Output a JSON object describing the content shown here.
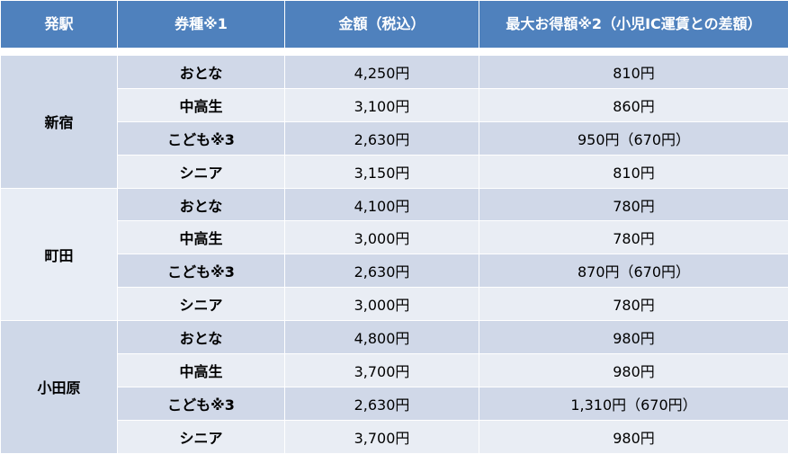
{
  "header": {
    "station": "発駅",
    "ticket_type": "券種※1",
    "price": "金額（税込）",
    "saving": "最大お得額※2（小児IC運賃との差額）"
  },
  "stations": [
    {
      "name": "新宿",
      "rows": [
        {
          "type": "おとな",
          "price": "4,250円",
          "saving": "810円"
        },
        {
          "type": "中高生",
          "price": "3,100円",
          "saving": "860円"
        },
        {
          "type": "こども※3",
          "price": "2,630円",
          "saving": "950円（670円）"
        },
        {
          "type": "シニア",
          "price": "3,150円",
          "saving": "810円"
        }
      ]
    },
    {
      "name": "町田",
      "rows": [
        {
          "type": "おとな",
          "price": "4,100円",
          "saving": "780円"
        },
        {
          "type": "中高生",
          "price": "3,000円",
          "saving": "780円"
        },
        {
          "type": "こども※3",
          "price": "2,630円",
          "saving": "870円（670円）"
        },
        {
          "type": "シニア",
          "price": "3,000円",
          "saving": "780円"
        }
      ]
    },
    {
      "name": "小田原",
      "rows": [
        {
          "type": "おとな",
          "price": "4,800円",
          "saving": "980円"
        },
        {
          "type": "中高生",
          "price": "3,700円",
          "saving": "980円"
        },
        {
          "type": "こども※3",
          "price": "2,630円",
          "saving": "1,310円（670円）"
        },
        {
          "type": "シニア",
          "price": "3,700円",
          "saving": "980円"
        }
      ]
    }
  ]
}
